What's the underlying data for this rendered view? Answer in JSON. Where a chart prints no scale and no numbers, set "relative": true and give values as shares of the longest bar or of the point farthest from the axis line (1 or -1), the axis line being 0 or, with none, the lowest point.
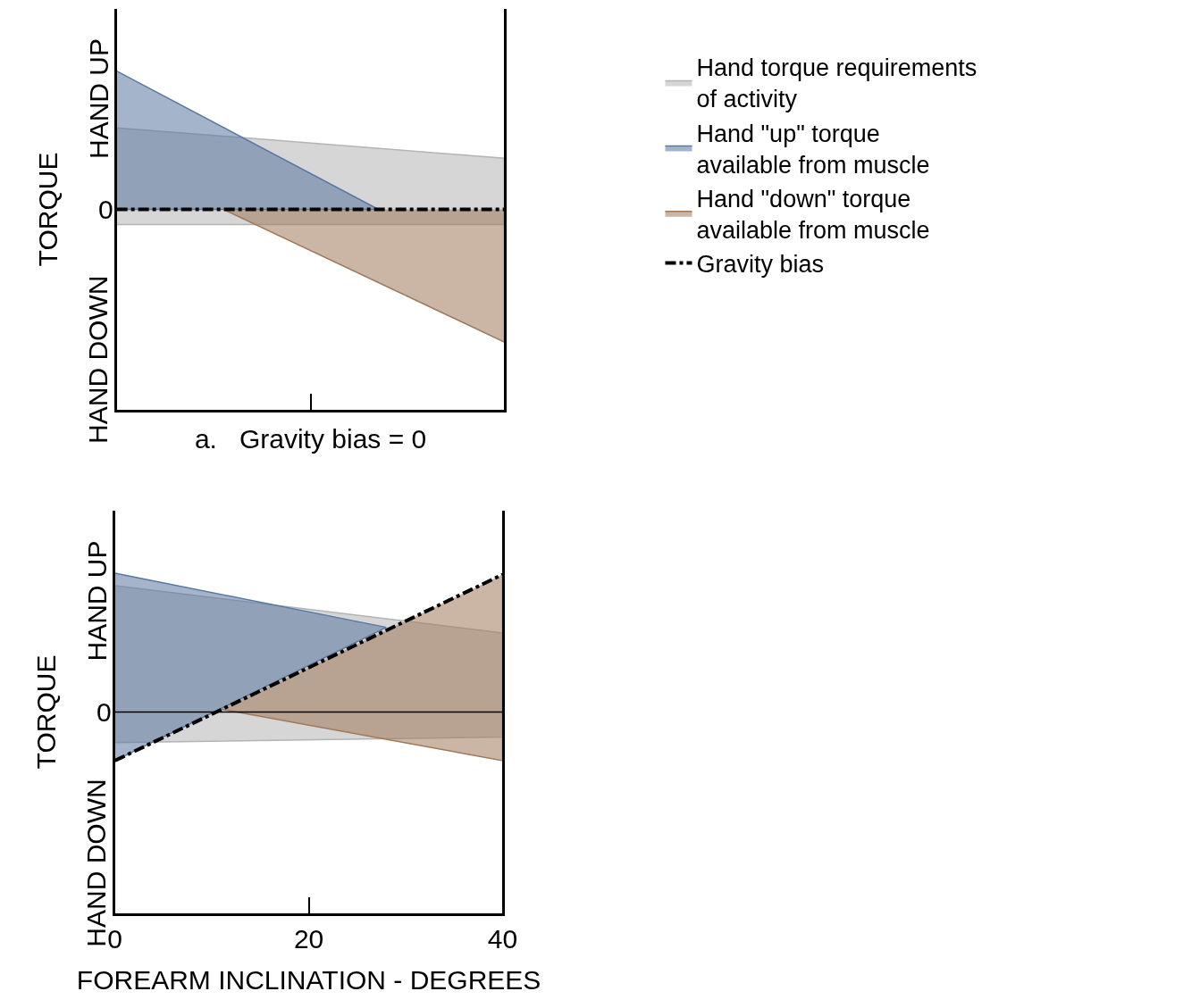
{
  "chart_data": [
    {
      "type": "area",
      "relative": true,
      "xlabel": "a.   Gravity bias = 0",
      "ylabel": "TORQUE",
      "annotations": [
        "HAND UP",
        "0",
        "HAND DOWN"
      ],
      "xlim": [
        0,
        40
      ],
      "xticks": [
        {
          "value": 20,
          "label": null
        }
      ],
      "tick_labels": false,
      "legend": "right",
      "series": [
        {
          "name": "Hand torque requirements of activity",
          "color": "#b4b4b4",
          "x": [
            0,
            40,
            40,
            0
          ],
          "values": [
            0.59,
            0.37,
            -0.11,
            -0.11
          ]
        },
        {
          "name": "Hand \"up\" torque available from muscle",
          "color": "#5a78a0",
          "x": [
            0,
            27,
            0
          ],
          "values": [
            1.0,
            0,
            0
          ]
        },
        {
          "name": "Hand \"down\" torque available from muscle",
          "color": "#a0785a",
          "x": [
            11,
            40,
            40
          ],
          "values": [
            0,
            -0.96,
            0
          ]
        },
        {
          "name": "Gravity bias",
          "type": "line",
          "color": "#000000",
          "line_style": "dashdot",
          "x": [
            0,
            40
          ],
          "values": [
            0,
            0
          ]
        }
      ]
    },
    {
      "type": "area",
      "relative": true,
      "xlabel": "FOREARM INCLINATION - DEGREES",
      "ylabel": "TORQUE",
      "annotations": [
        "HAND UP",
        "0",
        "HAND DOWN"
      ],
      "xlim": [
        0,
        40
      ],
      "xticks": [
        0,
        20,
        40
      ],
      "ref_lines": [
        {
          "axis": "y",
          "value": 0,
          "color": "#000000"
        }
      ],
      "series": [
        {
          "color": "#b4b4b4",
          "x": [
            0,
            40,
            40,
            0
          ],
          "values": [
            0.91,
            0.57,
            -0.18,
            -0.22
          ]
        },
        {
          "color": "#5a78a0",
          "x": [
            0,
            28,
            0
          ],
          "values": [
            1.0,
            0.61,
            -0.35
          ]
        },
        {
          "color": "#a0785a",
          "x": [
            11,
            40,
            40
          ],
          "values": [
            0.02,
            -0.35,
            0.99
          ]
        },
        {
          "type": "line",
          "color": "#000000",
          "line_style": "dashdot",
          "x": [
            0,
            40
          ],
          "values": [
            -0.35,
            0.99
          ]
        }
      ]
    }
  ]
}
